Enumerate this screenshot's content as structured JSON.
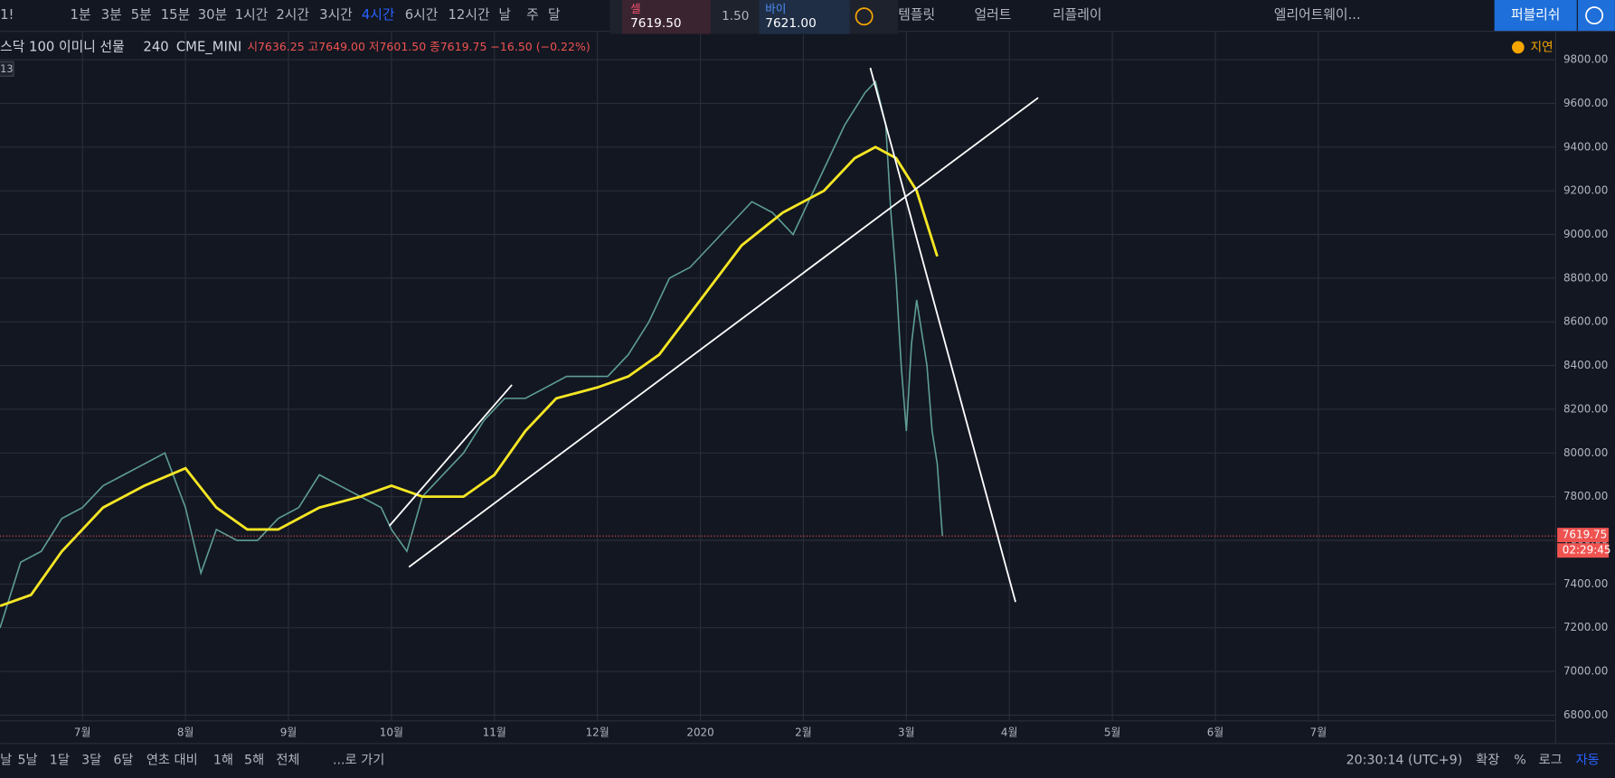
{
  "toolbar": {
    "symbol": "1!",
    "intervals": [
      "1분",
      "3분",
      "5분",
      "15분",
      "30분",
      "1시간",
      "2시간",
      "3시간",
      "4시간",
      "6시간",
      "12시간",
      "날",
      "주",
      "달"
    ],
    "selected": 8,
    "sell": {
      "label": "셀",
      "price": "7619.50"
    },
    "spread": "1.50",
    "buy": {
      "label": "바이",
      "price": "7621.00"
    },
    "tools": [
      "템플릿",
      "얼러트",
      "리플레이"
    ],
    "layout": "엘리어트웨이...",
    "publish": "퍼블리쉬"
  },
  "legend": {
    "name": "스닥 100 이미니 선물",
    "interval": "240",
    "exchange": "CME_MINI",
    "ohlc": "시7636.25 고7649.00 저7601.50 종7619.75 −16.50 (−0.22%)",
    "badge": "13",
    "delay": "지연"
  },
  "chart_data": {
    "type": "line",
    "xlim": [
      -0.8,
      14.3
    ],
    "ylim": [
      6776,
      9932
    ],
    "xticks": [
      {
        "value": 0,
        "label": "7월"
      },
      {
        "value": 1,
        "label": "8월"
      },
      {
        "value": 2,
        "label": "9월"
      },
      {
        "value": 3,
        "label": "10월"
      },
      {
        "value": 4,
        "label": "11월"
      },
      {
        "value": 5,
        "label": "12월"
      },
      {
        "value": 6,
        "label": "2020"
      },
      {
        "value": 7,
        "label": "2월"
      },
      {
        "value": 8,
        "label": "3월"
      },
      {
        "value": 9,
        "label": "4월"
      },
      {
        "value": 10,
        "label": "5월"
      },
      {
        "value": 11,
        "label": "6월"
      },
      {
        "value": 12,
        "label": "7월"
      }
    ],
    "yticks": [
      {
        "value": 6800,
        "label": "6800.00"
      },
      {
        "value": 7000,
        "label": "7000.00"
      },
      {
        "value": 7200,
        "label": "7200.00"
      },
      {
        "value": 7400,
        "label": "7400.00"
      },
      {
        "value": 7600,
        "label": "7600.00"
      },
      {
        "value": 7800,
        "label": "7800.00"
      },
      {
        "value": 8000,
        "label": "8000.00"
      },
      {
        "value": 8200,
        "label": "8200.00"
      },
      {
        "value": 8400,
        "label": "8400.00"
      },
      {
        "value": 8600,
        "label": "8600.00"
      },
      {
        "value": 8800,
        "label": "8800.00"
      },
      {
        "value": 9000,
        "label": "9000.00"
      },
      {
        "value": 9200,
        "label": "9200.00"
      },
      {
        "value": 9400,
        "label": "9400.00"
      },
      {
        "value": 9600,
        "label": "9600.00"
      },
      {
        "value": 9800,
        "label": "9800.00"
      }
    ],
    "grid": true,
    "series": [
      {
        "color": "#5e9e95",
        "x": [
          -0.8,
          -0.6,
          -0.4,
          -0.2,
          0,
          0.2,
          0.4,
          0.6,
          0.8,
          1.0,
          1.15,
          1.3,
          1.5,
          1.7,
          1.9,
          2.1,
          2.3,
          2.5,
          2.7,
          2.9,
          3.0,
          3.15,
          3.3,
          3.5,
          3.7,
          3.9,
          4.1,
          4.3,
          4.5,
          4.7,
          4.9,
          5.1,
          5.3,
          5.5,
          5.7,
          5.9,
          6.1,
          6.3,
          6.5,
          6.7,
          6.9,
          7.0,
          7.2,
          7.4,
          7.6,
          7.7,
          7.8,
          7.85,
          7.9,
          7.95,
          8.0,
          8.05,
          8.1,
          8.2,
          8.25,
          8.3,
          8.35
        ],
        "values": [
          7200,
          7500,
          7550,
          7700,
          7750,
          7850,
          7900,
          7950,
          8000,
          7750,
          7450,
          7650,
          7600,
          7600,
          7700,
          7750,
          7900,
          7850,
          7800,
          7750,
          7650,
          7550,
          7800,
          7900,
          8000,
          8150,
          8250,
          8250,
          8300,
          8350,
          8350,
          8350,
          8450,
          8600,
          8800,
          8850,
          8950,
          9050,
          9150,
          9100,
          9000,
          9100,
          9300,
          9500,
          9650,
          9700,
          9500,
          9100,
          8800,
          8400,
          8100,
          8500,
          8700,
          8400,
          8100,
          7950,
          7619.75
        ]
      },
      {
        "color": "#f5e624",
        "x": [
          -0.8,
          -0.5,
          -0.2,
          0.2,
          0.6,
          1.0,
          1.3,
          1.6,
          1.9,
          2.3,
          2.7,
          3.0,
          3.3,
          3.7,
          4.0,
          4.3,
          4.6,
          5.0,
          5.3,
          5.6,
          6.0,
          6.4,
          6.8,
          7.2,
          7.5,
          7.7,
          7.9,
          8.1,
          8.3
        ],
        "values": [
          7300,
          7350,
          7550,
          7750,
          7850,
          7930,
          7750,
          7650,
          7650,
          7750,
          7800,
          7850,
          7800,
          7800,
          7900,
          8100,
          8250,
          8300,
          8350,
          8450,
          8700,
          8950,
          9100,
          9200,
          9350,
          9400,
          9350,
          9200,
          8900
        ]
      }
    ],
    "last_price": 7619.75,
    "countdown": "02:29:45"
  },
  "bottom_bar": {
    "ranges": [
      "날",
      "5날",
      "1달",
      "3달",
      "6달",
      "연초 대비",
      "1해",
      "5해",
      "전체"
    ],
    "goto": "...로 가기",
    "clock": "20:30:14 (UTC+9)",
    "options": [
      "확장",
      "%",
      "로그",
      "자동"
    ]
  }
}
